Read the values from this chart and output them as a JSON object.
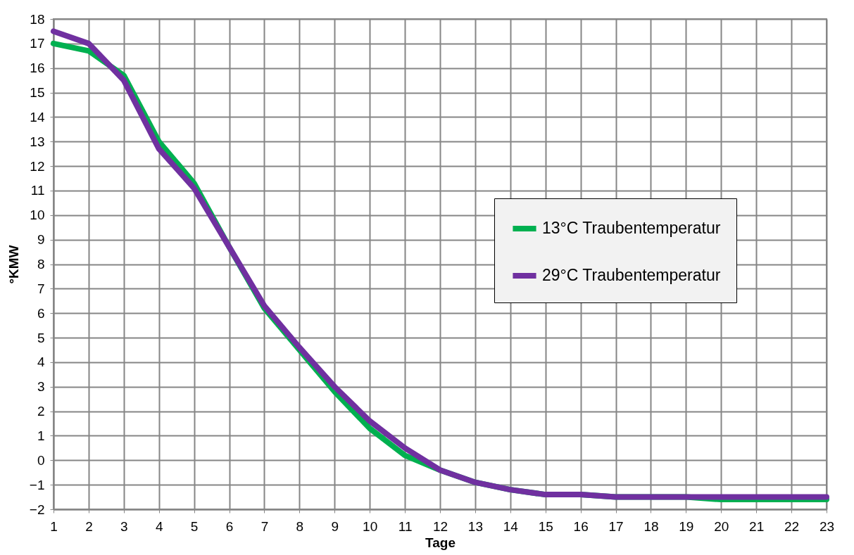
{
  "chart_data": {
    "type": "line",
    "xlabel": "Tage",
    "ylabel": "°KMW",
    "x": [
      1,
      2,
      3,
      4,
      5,
      6,
      7,
      8,
      9,
      10,
      11,
      12,
      13,
      14,
      15,
      16,
      17,
      18,
      19,
      20,
      21,
      22,
      23
    ],
    "series": [
      {
        "name": "13°C Traubentemperatur",
        "color": "#00b050",
        "values": [
          17.0,
          16.7,
          15.7,
          13.0,
          11.3,
          8.7,
          6.2,
          4.5,
          2.8,
          1.3,
          0.2,
          -0.4,
          -0.9,
          -1.2,
          -1.4,
          -1.4,
          -1.5,
          -1.5,
          -1.5,
          -1.6,
          -1.6,
          -1.6,
          -1.6
        ]
      },
      {
        "name": "29°C Traubentemperatur",
        "color": "#7030a0",
        "values": [
          17.5,
          17.0,
          15.5,
          12.7,
          11.1,
          8.7,
          6.3,
          4.6,
          3.0,
          1.6,
          0.5,
          -0.4,
          -0.9,
          -1.2,
          -1.4,
          -1.4,
          -1.5,
          -1.5,
          -1.5,
          -1.5,
          -1.5,
          -1.5,
          -1.5
        ]
      }
    ],
    "xlim": [
      1,
      23
    ],
    "xticks": [
      1,
      2,
      3,
      4,
      5,
      6,
      7,
      8,
      9,
      10,
      11,
      12,
      13,
      14,
      15,
      16,
      17,
      18,
      19,
      20,
      21,
      22,
      23
    ],
    "ylim": [
      -2,
      18
    ],
    "yticks": [
      -2,
      -1,
      0,
      1,
      2,
      3,
      4,
      5,
      6,
      7,
      8,
      9,
      10,
      11,
      12,
      13,
      14,
      15,
      16,
      17,
      18
    ],
    "grid": true,
    "legend": "right",
    "marker": "none",
    "line_style": "solid"
  }
}
